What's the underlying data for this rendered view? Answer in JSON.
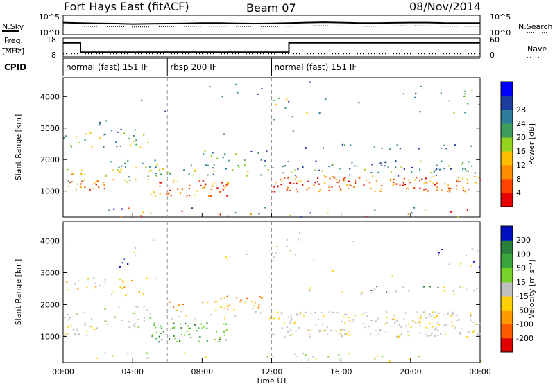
{
  "header": {
    "station": "Fort Hays East (fitACF)",
    "beam": "Beam 07",
    "date": "08/Nov/2014"
  },
  "left_labels": {
    "nsky": "N.Sky",
    "freq": "Freq.",
    "freq_unit": "[MHz]",
    "cpid": "CPID"
  },
  "right_labels": {
    "nsearch": "N.Search",
    "nave": "Nave"
  },
  "chart_data": [
    {
      "type": "line",
      "panel": "noise",
      "series": [
        {
          "name": "N.Sky",
          "style": "solid"
        },
        {
          "name": "N.Search",
          "style": "dotted"
        }
      ],
      "y_left_ticks": [
        "10^5",
        "10^0"
      ],
      "y_right_ticks": [
        "10^5",
        "10^0"
      ],
      "x": [
        0,
        1,
        2,
        3,
        4,
        5,
        6,
        7,
        8,
        9,
        10,
        11,
        12,
        13,
        14,
        15,
        16,
        17,
        18,
        19,
        20,
        21,
        22,
        23,
        24
      ],
      "sky_level": [
        0.62,
        0.6,
        0.58,
        0.57,
        0.55,
        0.56,
        0.57,
        0.58,
        0.6,
        0.6,
        0.58,
        0.57,
        0.58,
        0.6,
        0.62,
        0.64,
        0.62,
        0.6,
        0.6,
        0.61,
        0.62,
        0.62,
        0.6,
        0.6,
        0.6
      ],
      "search_level": [
        0.45,
        0.44,
        0.42,
        0.42,
        0.4,
        0.4,
        0.42,
        0.43,
        0.44,
        0.44,
        0.43,
        0.42,
        0.42,
        0.44,
        0.45,
        0.46,
        0.45,
        0.44,
        0.44,
        0.45,
        0.46,
        0.45,
        0.44,
        0.44,
        0.44
      ]
    },
    {
      "type": "line",
      "panel": "frequency",
      "series": [
        {
          "name": "Freq.",
          "style": "solid"
        },
        {
          "name": "Nave",
          "style": "dotted"
        }
      ],
      "y_left_ticks": [
        "18",
        "8"
      ],
      "y_right_ticks": [
        "60",
        "0"
      ],
      "freq_steps": [
        {
          "from": 0.0,
          "to": 1.0,
          "value": 15.5
        },
        {
          "from": 1.0,
          "to": 13.0,
          "value": 10.5
        },
        {
          "from": 13.0,
          "to": 24.0,
          "value": 15.5
        }
      ],
      "nave_value": 10
    },
    {
      "type": "table",
      "panel": "cpid",
      "segments": [
        {
          "from": 0.0,
          "to": 6.0,
          "label": "normal (fast) 151 IF"
        },
        {
          "from": 6.0,
          "to": 12.0,
          "label": "rbsp 200 IF"
        },
        {
          "from": 12.0,
          "to": 24.0,
          "label": "normal (fast) 151 IF"
        }
      ]
    },
    {
      "type": "heatmap",
      "panel": "power",
      "ylabel": "Slant Range [km]",
      "ylim": [
        180,
        4600
      ],
      "yticks": [
        1000,
        2000,
        3000,
        4000
      ],
      "colorbar_label": "Power [dB]",
      "colorbar_ticks": [
        4,
        8,
        12,
        16,
        20,
        24,
        28
      ],
      "colors": [
        "#0000ff",
        "#1e3c9e",
        "#2e7d9a",
        "#3e9d5c",
        "#94d21e",
        "#ffbf00",
        "#ff8c00",
        "#ff4500",
        "#e60000"
      ]
    },
    {
      "type": "heatmap",
      "panel": "velocity",
      "ylabel": "Slant Range [km]",
      "xlabel": "Time UT",
      "ylim": [
        180,
        4600
      ],
      "yticks": [
        1000,
        2000,
        3000,
        4000
      ],
      "xlim": [
        0,
        24
      ],
      "xticks": [
        "00:00",
        "04:00",
        "08:00",
        "12:00",
        "16:00",
        "20:00",
        "00:00"
      ],
      "colorbar_label": "Velocity [m s⁻¹]",
      "colorbar_ticks": [
        200,
        100,
        50,
        15,
        -15,
        -50,
        -100,
        -200
      ],
      "colors": [
        "#0010c0",
        "#2a7f3a",
        "#3aa53a",
        "#79d22a",
        "#c0c0c0",
        "#ffd000",
        "#ff9a00",
        "#ff5a00",
        "#e00000"
      ]
    }
  ]
}
